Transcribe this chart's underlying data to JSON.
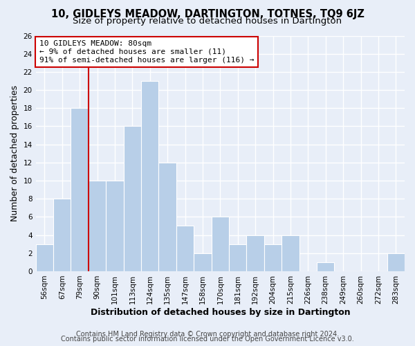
{
  "title": "10, GIDLEYS MEADOW, DARTINGTON, TOTNES, TQ9 6JZ",
  "subtitle": "Size of property relative to detached houses in Dartington",
  "xlabel": "Distribution of detached houses by size in Dartington",
  "ylabel": "Number of detached properties",
  "categories": [
    "56sqm",
    "67sqm",
    "79sqm",
    "90sqm",
    "101sqm",
    "113sqm",
    "124sqm",
    "135sqm",
    "147sqm",
    "158sqm",
    "170sqm",
    "181sqm",
    "192sqm",
    "204sqm",
    "215sqm",
    "226sqm",
    "238sqm",
    "249sqm",
    "260sqm",
    "272sqm",
    "283sqm"
  ],
  "values": [
    3,
    8,
    18,
    10,
    10,
    16,
    21,
    12,
    5,
    2,
    6,
    3,
    4,
    3,
    4,
    0,
    1,
    0,
    0,
    0,
    2
  ],
  "bar_color": "#b8cfe8",
  "bar_edge_color": "#ffffff",
  "highlight_line_color": "#cc0000",
  "annotation_line1": "10 GIDLEYS MEADOW: 80sqm",
  "annotation_line2": "← 9% of detached houses are smaller (11)",
  "annotation_line3": "91% of semi-detached houses are larger (116) →",
  "annotation_box_color": "#ffffff",
  "annotation_box_edge_color": "#cc0000",
  "ylim": [
    0,
    26
  ],
  "yticks": [
    0,
    2,
    4,
    6,
    8,
    10,
    12,
    14,
    16,
    18,
    20,
    22,
    24,
    26
  ],
  "footer1": "Contains HM Land Registry data © Crown copyright and database right 2024.",
  "footer2": "Contains public sector information licensed under the Open Government Licence v3.0.",
  "figure_bg_color": "#e8eef8",
  "plot_bg_color": "#e8eef8",
  "grid_color": "#ffffff",
  "title_fontsize": 10.5,
  "subtitle_fontsize": 9.5,
  "axis_label_fontsize": 9,
  "tick_fontsize": 7.5,
  "annotation_fontsize": 8,
  "footer_fontsize": 7
}
